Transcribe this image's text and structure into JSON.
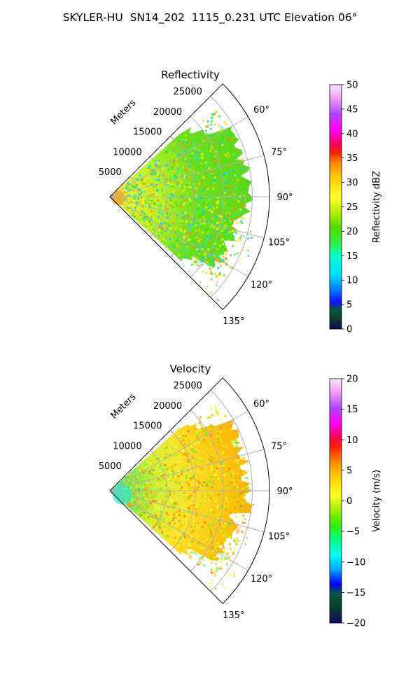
{
  "figure": {
    "suptitle": "SKYLER-HU  SN14_202  1115_0.231 UTC Elevation 06°"
  },
  "chart_data": [
    {
      "type": "polar_sector",
      "title": "Reflectivity",
      "range_label": "Meters",
      "range_ticks": [
        5000,
        10000,
        15000,
        20000,
        25000
      ],
      "range_tick_labels": [
        "5000",
        "10000",
        "15000",
        "20000",
        "25000"
      ],
      "r_max": 28000,
      "theta_range": [
        45,
        135
      ],
      "theta_ticks": [
        60,
        75,
        90,
        105,
        120,
        135
      ],
      "theta_tick_labels": [
        "60°",
        "75°",
        "90°",
        "105°",
        "120°",
        "135°"
      ],
      "grid": true,
      "colorbar": {
        "label": "Reflectivity dBZ",
        "min": 0,
        "max": 50,
        "ticks": [
          0,
          5,
          10,
          15,
          20,
          25,
          30,
          35,
          40,
          45,
          50
        ],
        "tick_labels": [
          "0",
          "5",
          "10",
          "15",
          "20",
          "25",
          "30",
          "35",
          "40",
          "45",
          "50"
        ]
      },
      "field": "reflectivity"
    },
    {
      "type": "polar_sector",
      "title": "Velocity",
      "range_label": "Meters",
      "range_ticks": [
        5000,
        10000,
        15000,
        20000,
        25000
      ],
      "range_tick_labels": [
        "5000",
        "10000",
        "15000",
        "20000",
        "25000"
      ],
      "r_max": 28000,
      "theta_range": [
        45,
        135
      ],
      "theta_ticks": [
        60,
        75,
        90,
        105,
        120,
        135
      ],
      "theta_tick_labels": [
        "60°",
        "75°",
        "90°",
        "105°",
        "120°",
        "135°"
      ],
      "grid": true,
      "colorbar": {
        "label": "Velocity (m/s)",
        "min": -20,
        "max": 20,
        "ticks": [
          -20,
          -15,
          -10,
          -5,
          0,
          5,
          10,
          15,
          20
        ],
        "tick_labels": [
          "−20",
          "−15",
          "−10",
          "−5",
          "0",
          "5",
          "10",
          "15",
          "20"
        ]
      },
      "field": "velocity"
    }
  ]
}
